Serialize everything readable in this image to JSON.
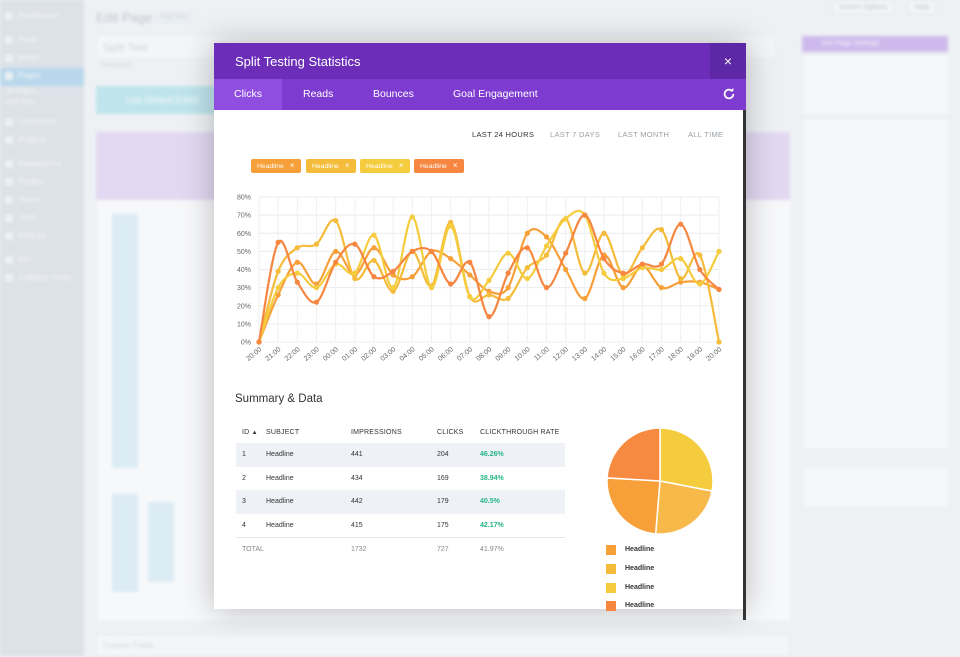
{
  "background": {
    "sidebar": [
      "Dashboard",
      "Posts",
      "Media",
      "Pages",
      "All Pages",
      "Add New",
      "Comments",
      "Projects",
      "Appearance",
      "Plugins",
      "Users",
      "Tools",
      "Settings",
      "Divi",
      "Collapse menu"
    ],
    "page_heading": "Edit Page",
    "add_new": "Add New",
    "screen_options": "Screen Options",
    "help": "Help",
    "post_title": "Split Test",
    "permalink": "Permalink:",
    "default_editor": "Use Default Editor",
    "divi_settings": "Divi Page Settings",
    "custom_fields": "Custom Fields"
  },
  "modal": {
    "title": "Split Testing Statistics",
    "close": "×",
    "tabs": [
      "Clicks",
      "Reads",
      "Bounces",
      "Goal Engagement"
    ],
    "active_tab": "Clicks",
    "refresh_icon": "refresh-icon",
    "ranges": [
      "LAST 24 HOURS",
      "LAST 7 DAYS",
      "LAST MONTH",
      "ALL TIME"
    ],
    "active_range": "LAST 24 HOURS",
    "chips": [
      {
        "label": "Headline",
        "color": "#f7a039"
      },
      {
        "label": "Headline",
        "color": "#f5bc3c"
      },
      {
        "label": "Headline",
        "color": "#f5cc3d"
      },
      {
        "label": "Headline",
        "color": "#f68640"
      }
    ],
    "summary_title": "Summary & Data",
    "table": {
      "headers": [
        "ID",
        "SUBJECT",
        "IMPRESSIONS",
        "CLICKS",
        "CLICKTHROUGH RATE"
      ],
      "sort_icon": "sort-up-icon",
      "rows": [
        [
          "1",
          "Headline",
          "441",
          "204",
          "46.26%"
        ],
        [
          "2",
          "Headline",
          "434",
          "169",
          "38.94%"
        ],
        [
          "3",
          "Headline",
          "442",
          "179",
          "40.5%"
        ],
        [
          "4",
          "Headline",
          "415",
          "175",
          "42.17%"
        ]
      ],
      "total": [
        "TOTAL",
        "",
        "1732",
        "727",
        "41.97%"
      ]
    },
    "pie_legend": [
      {
        "label": "Headline",
        "color": "#f7a039"
      },
      {
        "label": "Headline",
        "color": "#f5bc3c"
      },
      {
        "label": "Headline",
        "color": "#f5cc3d"
      },
      {
        "label": "Headline",
        "color": "#f68640"
      }
    ]
  },
  "chart_data": [
    {
      "type": "line",
      "title": "",
      "xlabel": "",
      "ylabel": "",
      "x": [
        "20:00",
        "21:00",
        "22:00",
        "23:00",
        "00:00",
        "01:00",
        "02:00",
        "03:00",
        "04:00",
        "05:00",
        "06:00",
        "07:00",
        "08:00",
        "09:00",
        "10:00",
        "11:00",
        "12:00",
        "13:00",
        "14:00",
        "15:00",
        "16:00",
        "17:00",
        "18:00",
        "19:00",
        "20:00"
      ],
      "yticks": [
        "0%",
        "10%",
        "20%",
        "30%",
        "40%",
        "50%",
        "60%",
        "70%",
        "80%"
      ],
      "ylim": [
        0,
        80
      ],
      "grid": true,
      "series": [
        {
          "color": "#f7a039",
          "values": [
            0,
            26,
            44,
            32,
            50,
            37,
            52,
            37,
            36,
            50,
            46,
            37,
            28,
            30,
            60,
            58,
            40,
            24,
            48,
            30,
            42,
            30,
            33,
            33,
            29
          ]
        },
        {
          "color": "#f5bc3c",
          "values": [
            0,
            39,
            52,
            54,
            67,
            35,
            45,
            28,
            50,
            31,
            66,
            25,
            26,
            24,
            41,
            48,
            68,
            38,
            60,
            37,
            52,
            62,
            35,
            48,
            0
          ]
        },
        {
          "color": "#f5cc3d",
          "values": [
            0,
            30,
            38,
            30,
            43,
            38,
            59,
            30,
            69,
            30,
            64,
            25,
            34,
            49,
            35,
            53,
            68,
            70,
            38,
            35,
            41,
            40,
            46,
            32,
            50
          ]
        },
        {
          "color": "#f68640",
          "values": [
            0,
            55,
            33,
            22,
            44,
            54,
            36,
            39,
            50,
            50,
            32,
            44,
            14,
            38,
            52,
            30,
            49,
            70,
            46,
            38,
            43,
            43,
            65,
            40,
            29
          ]
        }
      ]
    },
    {
      "type": "pie",
      "title": "",
      "labels": [
        "Headline",
        "Headline",
        "Headline",
        "Headline"
      ],
      "values": [
        204,
        169,
        179,
        175
      ],
      "colors": [
        "#f5cc3d",
        "#f7b94a",
        "#f7a039",
        "#f68a40"
      ]
    }
  ]
}
